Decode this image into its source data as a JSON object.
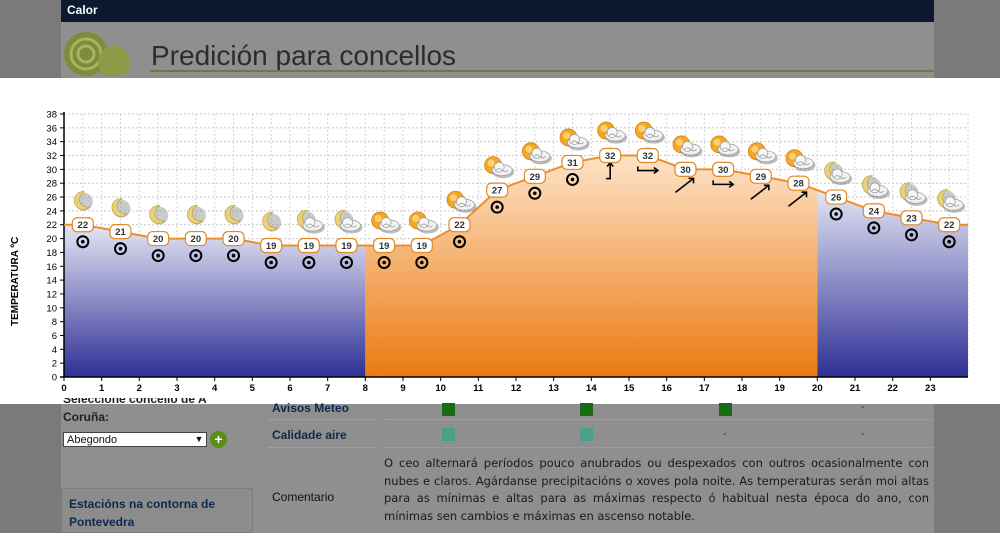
{
  "header": {
    "tab_label": "Calor",
    "page_title": "Predición para concellos"
  },
  "chart_data": {
    "type": "area",
    "ylabel": "TEMPERATURA ºC",
    "xlim": [
      0,
      24
    ],
    "ylim": [
      0,
      38
    ],
    "x_ticks": [
      0,
      1,
      2,
      3,
      4,
      5,
      6,
      7,
      8,
      9,
      10,
      11,
      12,
      13,
      14,
      15,
      16,
      17,
      18,
      19,
      20,
      21,
      22,
      23
    ],
    "y_ticks": [
      0,
      2,
      4,
      6,
      8,
      10,
      12,
      14,
      16,
      18,
      20,
      22,
      24,
      26,
      28,
      30,
      32,
      34,
      36,
      38
    ],
    "grid": true,
    "legend": "none",
    "day_period": [
      8,
      20
    ],
    "temperature_series": {
      "x": [
        0.5,
        1.5,
        2.5,
        3.5,
        4.5,
        5.5,
        6.5,
        7.5,
        8.5,
        9.5,
        10.5,
        11.5,
        12.5,
        13.5,
        14.5,
        15.5,
        16.5,
        17.5,
        18.5,
        19.5,
        20.5,
        21.5,
        22.5,
        23.5
      ],
      "y": [
        22,
        21,
        20,
        20,
        20,
        19,
        19,
        19,
        19,
        19,
        22,
        27,
        29,
        31,
        32,
        32,
        30,
        30,
        29,
        28,
        26,
        24,
        23,
        22
      ]
    },
    "sky_icons": [
      "moon-icon",
      "moon-icon",
      "moon-icon",
      "moon-icon",
      "moon-icon",
      "moon-icon",
      "moon-cloud-icon",
      "moon-cloud-icon",
      "sun-cloud-icon",
      "sun-cloud-icon",
      "sun-cloud-icon",
      "sun-cloud-icon",
      "sun-cloud-icon",
      "sun-cloud-icon",
      "sun-cloud-icon",
      "sun-cloud-icon",
      "sun-cloud-icon",
      "sun-cloud-icon",
      "sun-cloud-icon",
      "sun-cloud-icon",
      "moon-cloud-icon",
      "moon-cloud-icon",
      "moon-cloud-icon",
      "moon-cloud-icon"
    ],
    "wind_icons": [
      "calm-icon",
      "calm-icon",
      "calm-icon",
      "calm-icon",
      "calm-icon",
      "calm-icon",
      "calm-icon",
      "calm-icon",
      "calm-icon",
      "calm-icon",
      "calm-icon",
      "calm-icon",
      "calm-icon",
      "calm-icon",
      "wind-north-arrow-icon",
      "wind-east-arrow-icon",
      "wind-northeast-arrow-icon",
      "wind-east-arrow-icon",
      "wind-northeast-arrow-icon",
      "wind-northeast-arrow-icon",
      "calm-icon",
      "calm-icon",
      "calm-icon",
      "calm-icon"
    ],
    "colors": {
      "night_top": "#e4e6f4",
      "night_bottom": "#2f2f96",
      "day_top": "#fde3c8",
      "day_bottom": "#ec7a12",
      "line": "#ee8e2a",
      "label_border": "#e08a2a"
    }
  },
  "sidebar": {
    "select_label_partial": "Seleccione concello de A",
    "select_label": "Coruña:",
    "select_value": "Abegondo",
    "add_icon": "plus-icon",
    "stations_link": "Estacións na contorna de Pontevedra"
  },
  "table": {
    "rows": [
      {
        "label": "Avisos Meteo",
        "cells": [
          "green",
          "green",
          "green",
          "-"
        ]
      },
      {
        "label": "Calidade aire",
        "cells": [
          "teal",
          "teal",
          "-",
          "-"
        ]
      }
    ],
    "comment_label": "Comentario",
    "comment_text": "O ceo alternará períodos pouco anubrados ou despexados con outros ocasionalmente con nubes e claros. Agárdanse precipitacións o xoves pola noite. As temperaturas serán moi altas para as mínimas e altas para as máximas respecto ó habitual nesta época do ano, con mínimas sen cambios e máximas en ascenso notable.",
    "colors": {
      "green": "#1a6a14",
      "teal": "#4aa088"
    }
  }
}
